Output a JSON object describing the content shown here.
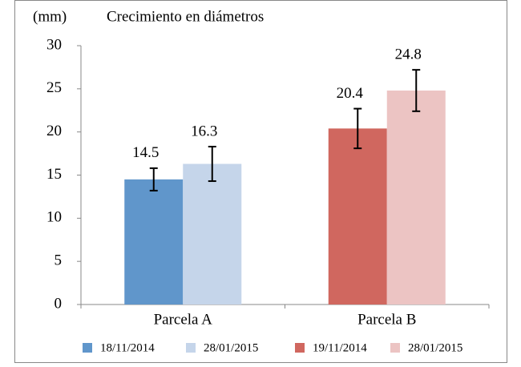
{
  "chart_data": {
    "type": "bar",
    "title": "Crecimiento en diámetros",
    "y_label": "(mm)",
    "categories": [
      "Parcela A",
      "Parcela B"
    ],
    "series": [
      {
        "name": "18/11/2014",
        "color": "#6096cb",
        "values": [
          14.5,
          null
        ],
        "errors": [
          1.3,
          null
        ]
      },
      {
        "name": "28/01/2015",
        "color": "#c5d5ea",
        "values": [
          16.3,
          null
        ],
        "errors": [
          2.0,
          null
        ]
      },
      {
        "name": "19/11/2014",
        "color": "#d0675f",
        "values": [
          null,
          20.4
        ],
        "errors": [
          null,
          2.3
        ]
      },
      {
        "name": "28/01/2015",
        "color": "#ecc4c3",
        "values": [
          null,
          24.8
        ],
        "errors": [
          null,
          2.4
        ]
      }
    ],
    "ylim": [
      0,
      30
    ],
    "yticks": [
      0,
      5,
      10,
      15,
      20,
      25,
      30
    ],
    "grid": false,
    "legend": "bottom"
  }
}
